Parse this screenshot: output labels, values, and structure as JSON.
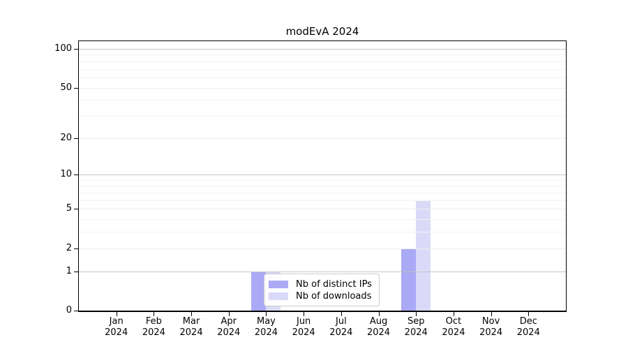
{
  "title": "modEvA 2024",
  "chart_data": {
    "type": "bar",
    "title": "modEvA 2024",
    "categories": [
      "Jan",
      "Feb",
      "Mar",
      "Apr",
      "May",
      "Jun",
      "Jul",
      "Aug",
      "Sep",
      "Oct",
      "Nov",
      "Dec"
    ],
    "x_year_label": "2024",
    "series": [
      {
        "name": "Nb of distinct IPs",
        "color": "#a9a9f5",
        "values": [
          0,
          0,
          0,
          0,
          1,
          0,
          0,
          0,
          2,
          0,
          0,
          0
        ]
      },
      {
        "name": "Nb of downloads",
        "color": "#dadaf8",
        "values": [
          0,
          0,
          0,
          0,
          1,
          0,
          0,
          0,
          6,
          0,
          0,
          0
        ]
      }
    ],
    "xlabel": "",
    "ylabel": "",
    "y_scale": "log1p",
    "ylim": [
      0,
      100
    ],
    "y_ticks": [
      0,
      1,
      2,
      5,
      10,
      20,
      50,
      100
    ],
    "y_decade_gridlines": [
      1,
      10,
      100
    ],
    "y_minor_gridlines": [
      3,
      4,
      6,
      7,
      8,
      9,
      30,
      40,
      60,
      70,
      80,
      90
    ],
    "grid": "horizontal",
    "legend_position": "inside-bottom-center",
    "colors": {
      "grid_decade": "#c4c4c4",
      "grid_major": "#ececec",
      "grid_minor": "#f3f3f3",
      "axis": "#000000",
      "background": "#ffffff",
      "text": "#000000"
    }
  }
}
